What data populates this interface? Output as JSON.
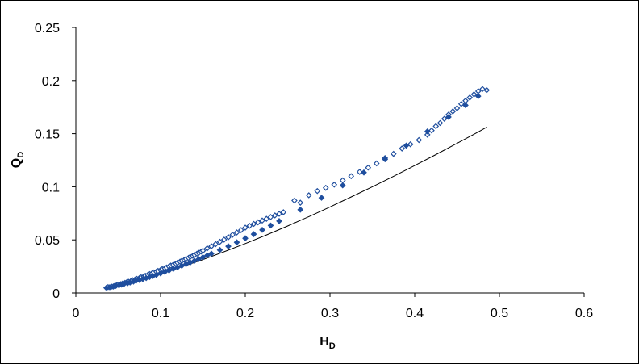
{
  "chart_data": {
    "type": "scatter",
    "title": "",
    "xlabel": {
      "main": "H",
      "sub": "D"
    },
    "ylabel": {
      "main": "Q",
      "sub": "D"
    },
    "xlim": [
      0,
      0.6
    ],
    "ylim": [
      0,
      0.25
    ],
    "x_ticks": [
      "0",
      "0.1",
      "0.2",
      "0.3",
      "0.4",
      "0.5",
      "0.6"
    ],
    "y_ticks": [
      "0",
      "0.05",
      "0.1",
      "0.15",
      "0.2",
      "0.25"
    ],
    "grid": false,
    "legend": "none",
    "marker_color": "#1f4e9e",
    "line_color": "#000000",
    "series": [
      {
        "kind": "points",
        "marker": "open-diamond",
        "x": [
          0.038,
          0.042,
          0.045,
          0.048,
          0.05,
          0.053,
          0.055,
          0.058,
          0.06,
          0.062,
          0.065,
          0.067,
          0.07,
          0.072,
          0.075,
          0.077,
          0.08,
          0.082,
          0.085,
          0.087,
          0.09,
          0.092,
          0.095,
          0.097,
          0.1,
          0.102,
          0.105,
          0.107,
          0.11,
          0.112,
          0.115,
          0.118,
          0.12,
          0.123,
          0.125,
          0.128,
          0.13,
          0.133,
          0.135,
          0.138,
          0.14,
          0.143,
          0.145,
          0.148,
          0.15,
          0.155,
          0.16,
          0.165,
          0.17,
          0.175,
          0.18,
          0.185,
          0.19,
          0.195,
          0.2,
          0.205,
          0.21,
          0.215,
          0.22,
          0.225,
          0.23,
          0.235,
          0.24,
          0.245,
          0.258,
          0.265,
          0.275,
          0.285,
          0.295,
          0.305,
          0.315,
          0.325,
          0.335,
          0.345,
          0.355,
          0.365,
          0.375,
          0.385,
          0.395,
          0.405,
          0.415,
          0.42,
          0.425,
          0.43,
          0.435,
          0.44,
          0.445,
          0.45,
          0.455,
          0.46,
          0.465,
          0.47,
          0.475,
          0.48,
          0.485
        ],
        "y": [
          0.0055,
          0.006,
          0.0065,
          0.0072,
          0.0078,
          0.0083,
          0.0088,
          0.0095,
          0.01,
          0.0106,
          0.0112,
          0.012,
          0.0127,
          0.0133,
          0.014,
          0.0148,
          0.0155,
          0.0162,
          0.017,
          0.0178,
          0.0185,
          0.0193,
          0.02,
          0.0208,
          0.0216,
          0.0225,
          0.0232,
          0.024,
          0.0249,
          0.0258,
          0.0266,
          0.0276,
          0.0284,
          0.0295,
          0.0302,
          0.0312,
          0.032,
          0.033,
          0.034,
          0.035,
          0.0358,
          0.037,
          0.0378,
          0.039,
          0.0398,
          0.042,
          0.044,
          0.046,
          0.0482,
          0.0502,
          0.0525,
          0.0548,
          0.057,
          0.0592,
          0.0615,
          0.0632,
          0.065,
          0.0665,
          0.0682,
          0.0698,
          0.0715,
          0.073,
          0.0745,
          0.076,
          0.087,
          0.085,
          0.092,
          0.096,
          0.099,
          0.102,
          0.106,
          0.11,
          0.114,
          0.118,
          0.122,
          0.127,
          0.131,
          0.136,
          0.14,
          0.144,
          0.149,
          0.153,
          0.157,
          0.16,
          0.164,
          0.168,
          0.171,
          0.174,
          0.178,
          0.181,
          0.184,
          0.187,
          0.19,
          0.192,
          0.191
        ]
      },
      {
        "kind": "points",
        "marker": "filled-diamond",
        "x": [
          0.036,
          0.04,
          0.044,
          0.047,
          0.051,
          0.054,
          0.057,
          0.061,
          0.064,
          0.068,
          0.071,
          0.075,
          0.079,
          0.083,
          0.087,
          0.091,
          0.095,
          0.1,
          0.105,
          0.11,
          0.115,
          0.12,
          0.125,
          0.13,
          0.135,
          0.14,
          0.145,
          0.15,
          0.155,
          0.16,
          0.17,
          0.18,
          0.19,
          0.2,
          0.21,
          0.22,
          0.23,
          0.24,
          0.265,
          0.29,
          0.315,
          0.34,
          0.365,
          0.39,
          0.415,
          0.44,
          0.46,
          0.475
        ],
        "y": [
          0.0048,
          0.0054,
          0.006,
          0.0066,
          0.0072,
          0.0079,
          0.0086,
          0.0092,
          0.0099,
          0.0107,
          0.0114,
          0.0122,
          0.0131,
          0.014,
          0.015,
          0.016,
          0.017,
          0.0184,
          0.0198,
          0.0212,
          0.0226,
          0.0241,
          0.0256,
          0.0271,
          0.0287,
          0.0303,
          0.0319,
          0.0336,
          0.0353,
          0.037,
          0.0405,
          0.044,
          0.0477,
          0.0515,
          0.0554,
          0.0594,
          0.0635,
          0.0677,
          0.0784,
          0.0896,
          0.1013,
          0.1134,
          0.1259,
          0.1388,
          0.1521,
          0.1657,
          0.1768,
          0.1853
        ]
      },
      {
        "kind": "line",
        "x": [
          0.035,
          0.05,
          0.075,
          0.1,
          0.125,
          0.15,
          0.175,
          0.2,
          0.225,
          0.25,
          0.275,
          0.3,
          0.325,
          0.35,
          0.375,
          0.4,
          0.425,
          0.45,
          0.475,
          0.485
        ],
        "y": [
          0.0047,
          0.0074,
          0.0125,
          0.0182,
          0.0246,
          0.0314,
          0.0388,
          0.0465,
          0.0546,
          0.0631,
          0.0719,
          0.081,
          0.0904,
          0.1,
          0.1099,
          0.12,
          0.1303,
          0.1409,
          0.1517,
          0.1561
        ]
      }
    ]
  }
}
